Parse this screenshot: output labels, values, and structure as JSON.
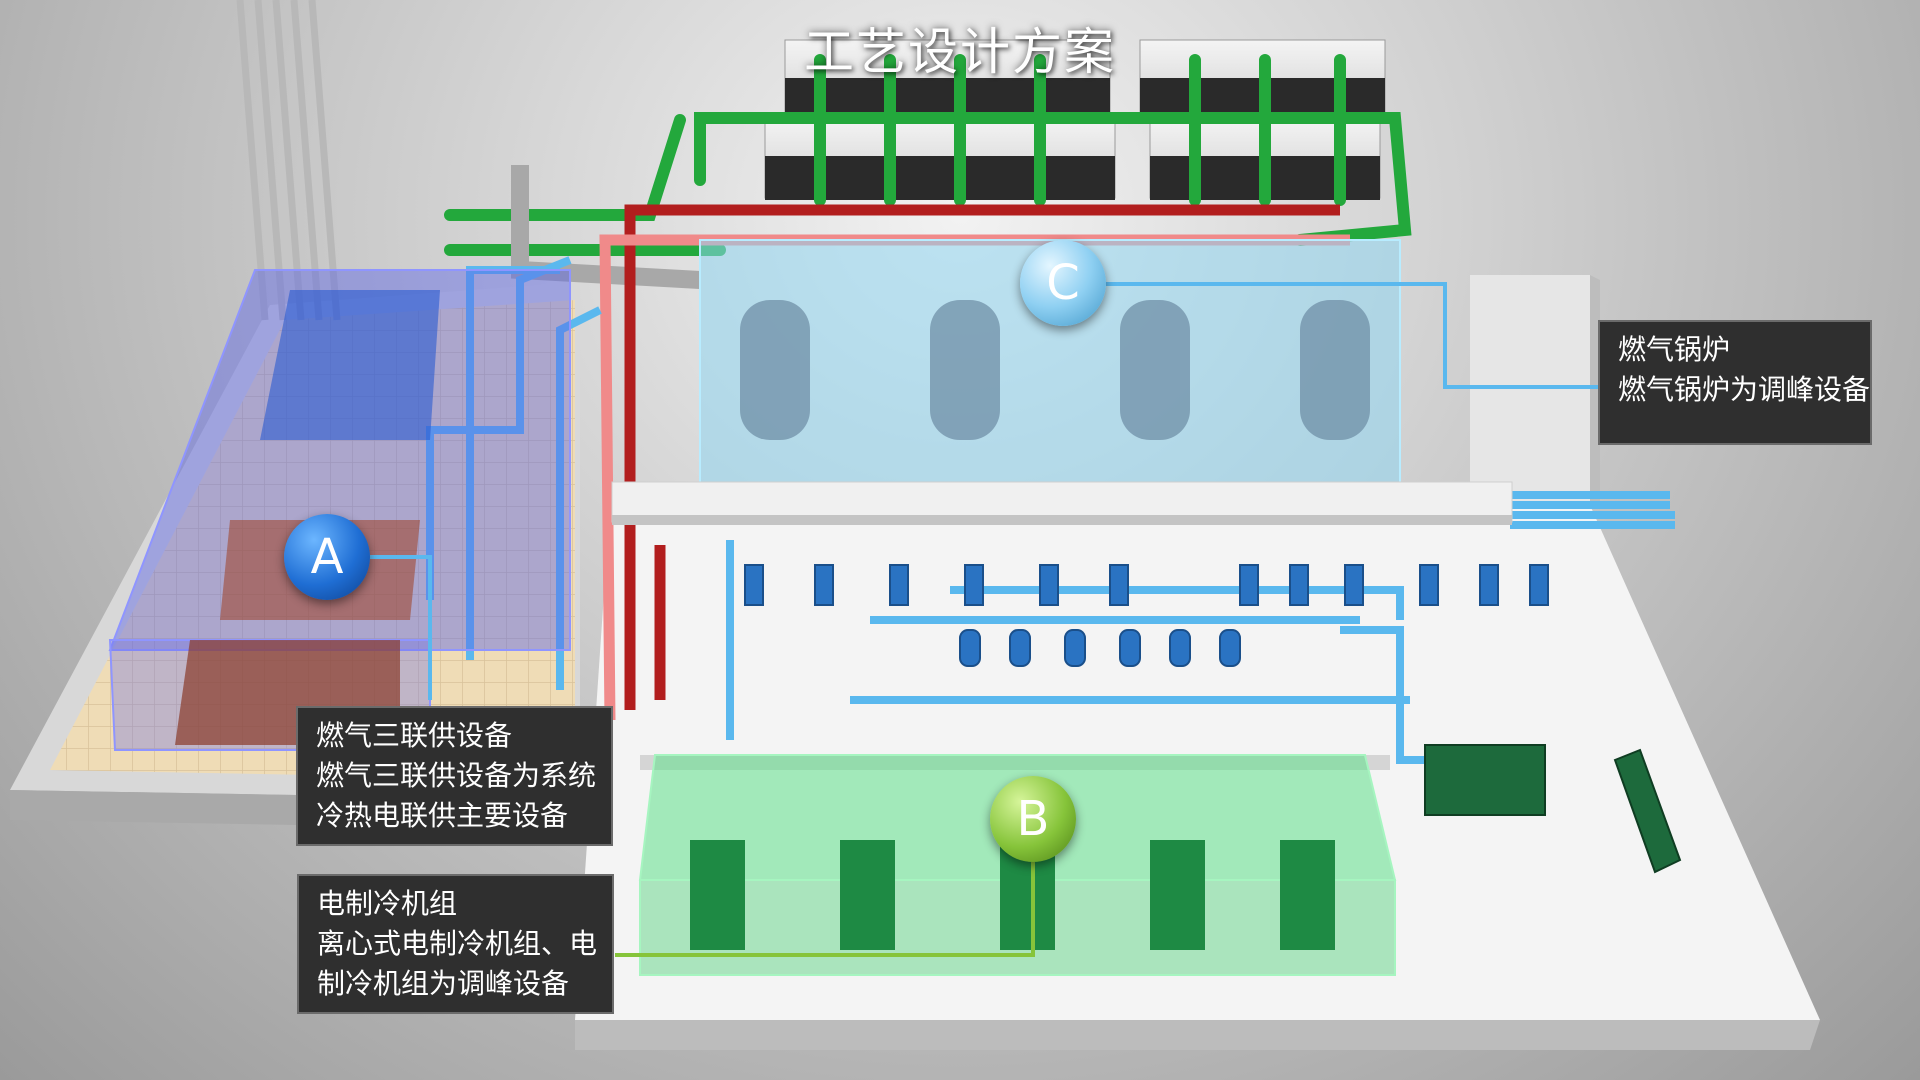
{
  "title": "工艺设计方案",
  "markers": {
    "a": "A",
    "b": "B",
    "c": "C"
  },
  "callouts": [
    {
      "id": "gas-boiler",
      "lines": [
        "燃气锅炉",
        "燃气锅炉为调峰设备"
      ]
    },
    {
      "id": "cchp",
      "lines": [
        "燃气三联供设备",
        "燃气三联供设备为系统",
        "冷热电联供主要设备"
      ]
    },
    {
      "id": "electric-chiller",
      "lines": [
        "电制冷机组",
        "离心式电制冷机组、电",
        "制冷机组为调峰设备"
      ]
    }
  ],
  "colors": {
    "zone_a": "#5b63e6",
    "zone_b": "#5fe08a",
    "zone_c": "#8fd6f0",
    "pipe_blue": "#5ab8ee",
    "pipe_green": "#23a83c",
    "pipe_red": "#b21e1e",
    "pipe_pink": "#f08a8a"
  }
}
